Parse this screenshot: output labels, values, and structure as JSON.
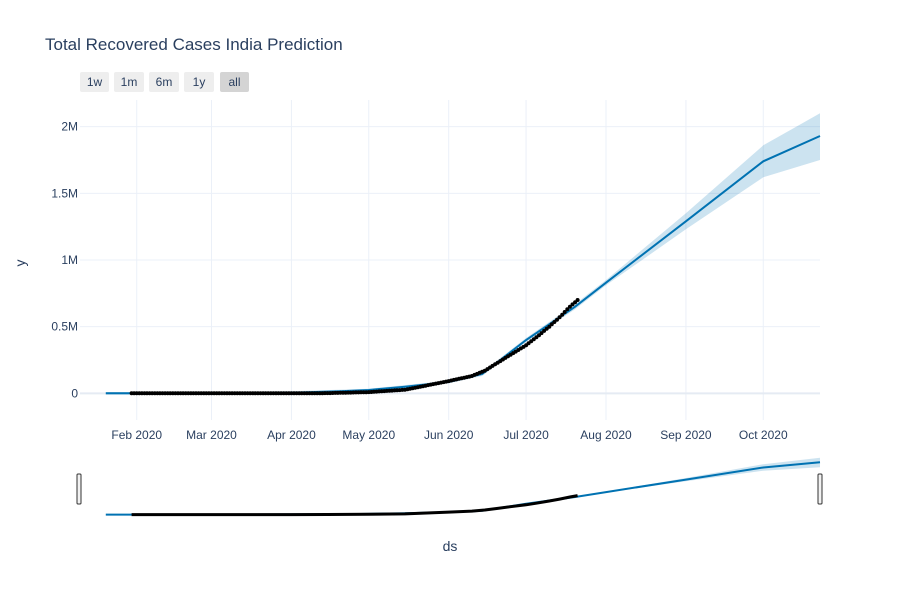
{
  "chart_data": {
    "type": "line",
    "title": "Total Recovered Cases India Prediction",
    "xlabel": "ds",
    "ylabel": "y",
    "x_range": [
      "2020-01-10",
      "2020-10-23"
    ],
    "ylim": [
      -200000,
      2200000
    ],
    "x_ticks": [
      {
        "date": "2020-02-01",
        "label": "Feb 2020"
      },
      {
        "date": "2020-03-01",
        "label": "Mar 2020"
      },
      {
        "date": "2020-04-01",
        "label": "Apr 2020"
      },
      {
        "date": "2020-05-01",
        "label": "May 2020"
      },
      {
        "date": "2020-06-01",
        "label": "Jun 2020"
      },
      {
        "date": "2020-07-01",
        "label": "Jul 2020"
      },
      {
        "date": "2020-08-01",
        "label": "Aug 2020"
      },
      {
        "date": "2020-09-01",
        "label": "Sep 2020"
      },
      {
        "date": "2020-10-01",
        "label": "Oct 2020"
      }
    ],
    "y_ticks": [
      {
        "value": 0,
        "label": "0"
      },
      {
        "value": 500000,
        "label": "0.5M"
      },
      {
        "value": 1000000,
        "label": "1M"
      },
      {
        "value": 1500000,
        "label": "1.5M"
      },
      {
        "value": 2000000,
        "label": "2M"
      }
    ],
    "grid": true,
    "colors": {
      "prediction": "#0072B2",
      "uncertainty": "rgba(0,114,178,0.2)",
      "actual": "#000000",
      "grid": "#ebf0f8",
      "title": "#2a3f5f"
    },
    "range_selector": {
      "buttons": [
        "1w",
        "1m",
        "6m",
        "1y",
        "all"
      ],
      "active": "all"
    },
    "range_slider": true,
    "series": [
      {
        "kind": "prediction",
        "points": [
          {
            "x": "2020-01-20",
            "y": 0
          },
          {
            "x": "2020-03-01",
            "y": 0
          },
          {
            "x": "2020-04-01",
            "y": 5000
          },
          {
            "x": "2020-04-20",
            "y": 15000
          },
          {
            "x": "2020-05-01",
            "y": 25000
          },
          {
            "x": "2020-05-15",
            "y": 50000
          },
          {
            "x": "2020-06-01",
            "y": 85000
          },
          {
            "x": "2020-06-14",
            "y": 145000
          },
          {
            "x": "2020-07-01",
            "y": 400000
          },
          {
            "x": "2020-07-20",
            "y": 650000
          },
          {
            "x": "2020-08-01",
            "y": 830000
          },
          {
            "x": "2020-09-01",
            "y": 1290000
          },
          {
            "x": "2020-10-01",
            "y": 1740000
          },
          {
            "x": "2020-10-23",
            "y": 1930000
          }
        ]
      },
      {
        "kind": "uncertainty",
        "lower": [
          {
            "x": "2020-01-20",
            "y": -10000
          },
          {
            "x": "2020-03-01",
            "y": -10000
          },
          {
            "x": "2020-04-01",
            "y": -5000
          },
          {
            "x": "2020-05-01",
            "y": 15000
          },
          {
            "x": "2020-06-01",
            "y": 75000
          },
          {
            "x": "2020-06-14",
            "y": 130000
          },
          {
            "x": "2020-07-01",
            "y": 385000
          },
          {
            "x": "2020-07-20",
            "y": 630000
          },
          {
            "x": "2020-08-01",
            "y": 810000
          },
          {
            "x": "2020-09-01",
            "y": 1230000
          },
          {
            "x": "2020-10-01",
            "y": 1620000
          },
          {
            "x": "2020-10-23",
            "y": 1750000
          }
        ],
        "upper": [
          {
            "x": "2020-01-20",
            "y": 10000
          },
          {
            "x": "2020-03-01",
            "y": 10000
          },
          {
            "x": "2020-04-01",
            "y": 15000
          },
          {
            "x": "2020-05-01",
            "y": 35000
          },
          {
            "x": "2020-06-01",
            "y": 95000
          },
          {
            "x": "2020-06-14",
            "y": 160000
          },
          {
            "x": "2020-07-01",
            "y": 415000
          },
          {
            "x": "2020-07-20",
            "y": 670000
          },
          {
            "x": "2020-08-01",
            "y": 850000
          },
          {
            "x": "2020-09-01",
            "y": 1350000
          },
          {
            "x": "2020-10-01",
            "y": 1860000
          },
          {
            "x": "2020-10-23",
            "y": 2100000
          }
        ]
      },
      {
        "kind": "actual",
        "points": [
          {
            "x": "2020-01-30",
            "y": 0
          },
          {
            "x": "2020-02-15",
            "y": 0
          },
          {
            "x": "2020-03-01",
            "y": 0
          },
          {
            "x": "2020-03-15",
            "y": 0
          },
          {
            "x": "2020-04-01",
            "y": 150
          },
          {
            "x": "2020-04-15",
            "y": 1500
          },
          {
            "x": "2020-05-01",
            "y": 9000
          },
          {
            "x": "2020-05-15",
            "y": 27000
          },
          {
            "x": "2020-06-01",
            "y": 92000
          },
          {
            "x": "2020-06-10",
            "y": 130000
          },
          {
            "x": "2020-06-15",
            "y": 170000
          },
          {
            "x": "2020-06-20",
            "y": 230000
          },
          {
            "x": "2020-06-25",
            "y": 290000
          },
          {
            "x": "2020-07-01",
            "y": 360000
          },
          {
            "x": "2020-07-05",
            "y": 420000
          },
          {
            "x": "2020-07-10",
            "y": 500000
          },
          {
            "x": "2020-07-14",
            "y": 570000
          },
          {
            "x": "2020-07-18",
            "y": 650000
          },
          {
            "x": "2020-07-21",
            "y": 700000
          }
        ]
      }
    ]
  }
}
